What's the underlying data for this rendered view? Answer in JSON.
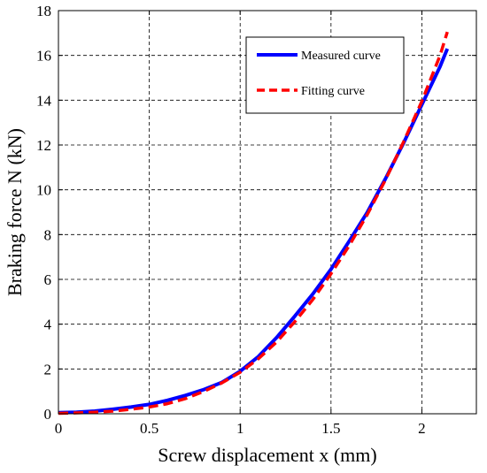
{
  "chart_data": {
    "type": "line",
    "title": "",
    "xlabel": "Screw displacement x (mm)",
    "ylabel": "Braking force N (kN)",
    "xlim": [
      0,
      2.3
    ],
    "ylim": [
      0,
      18
    ],
    "xticks": [
      0,
      0.5,
      1,
      1.5,
      2
    ],
    "xtick_labels": [
      "0",
      "0.5",
      "1",
      "1.5",
      "2"
    ],
    "yticks": [
      0,
      2,
      4,
      6,
      8,
      10,
      12,
      14,
      16,
      18
    ],
    "ytick_labels": [
      "0",
      "2",
      "4",
      "6",
      "8",
      "10",
      "12",
      "14",
      "16",
      "18"
    ],
    "grid": true,
    "grid_style": "dashed",
    "legend_position": "top-right",
    "series": [
      {
        "name": "Measured curve",
        "color": "#0000ff",
        "line_style": "solid",
        "x": [
          0.0,
          0.1,
          0.2,
          0.3,
          0.4,
          0.5,
          0.6,
          0.7,
          0.8,
          0.9,
          1.0,
          1.1,
          1.2,
          1.3,
          1.4,
          1.5,
          1.6,
          1.7,
          1.8,
          1.9,
          2.0,
          2.1,
          2.14
        ],
        "y": [
          0.05,
          0.07,
          0.12,
          0.2,
          0.3,
          0.42,
          0.6,
          0.82,
          1.08,
          1.4,
          1.9,
          2.55,
          3.4,
          4.35,
          5.35,
          6.45,
          7.7,
          9.0,
          10.5,
          12.1,
          13.8,
          15.5,
          16.3
        ]
      },
      {
        "name": "Fitting curve",
        "color": "#ff0000",
        "line_style": "dashed",
        "x": [
          0.0,
          0.1,
          0.2,
          0.3,
          0.4,
          0.5,
          0.6,
          0.7,
          0.8,
          0.9,
          1.0,
          1.1,
          1.2,
          1.3,
          1.4,
          1.5,
          1.6,
          1.7,
          1.8,
          1.9,
          2.0,
          2.1,
          2.14
        ],
        "y": [
          0.02,
          0.04,
          0.07,
          0.12,
          0.2,
          0.3,
          0.45,
          0.68,
          1.0,
          1.38,
          1.85,
          2.45,
          3.2,
          4.1,
          5.1,
          6.25,
          7.5,
          8.9,
          10.45,
          12.15,
          13.95,
          16.0,
          17.05
        ]
      }
    ]
  }
}
